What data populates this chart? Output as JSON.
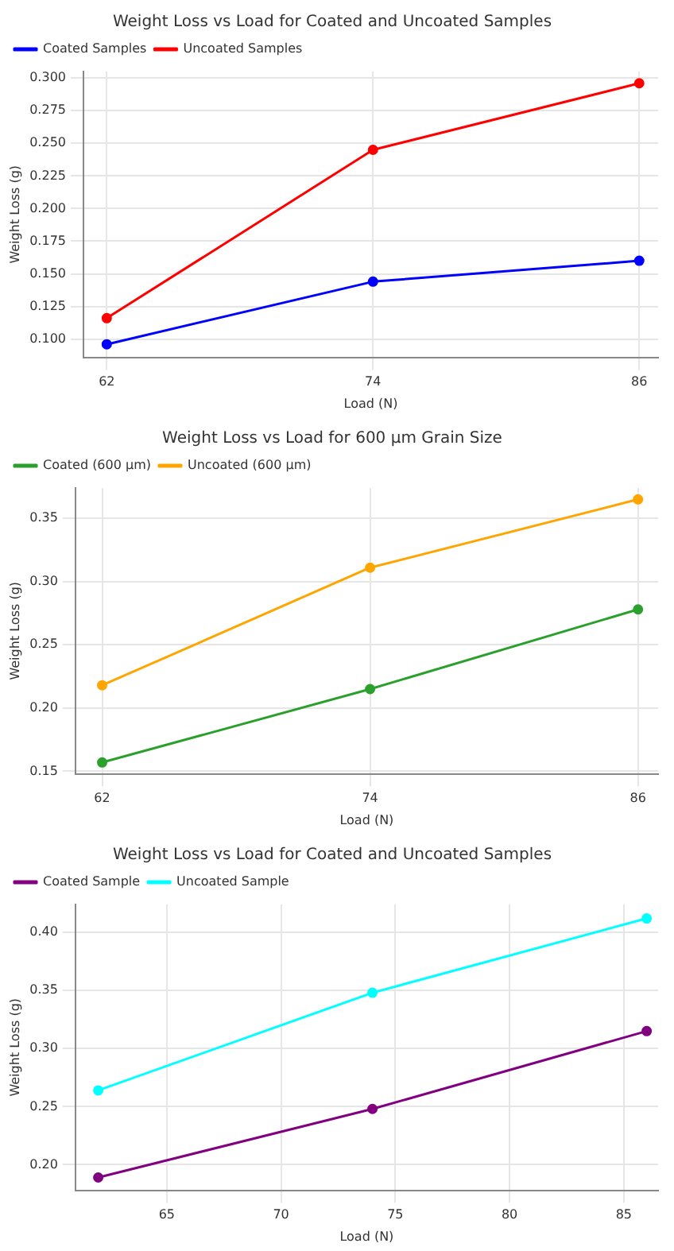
{
  "chart_data": [
    {
      "type": "line",
      "title": "Weight Loss vs Load for Coated and Uncoated Samples",
      "xlabel": "Load (N)",
      "ylabel": "Weight Loss (g)",
      "x": [
        62,
        74,
        86
      ],
      "xlim": [
        60.95,
        86.85
      ],
      "xticks": [
        62,
        74,
        86
      ],
      "ylim": [
        0.086,
        0.305
      ],
      "yticks": [
        {
          "value": 0.1,
          "label": "0.100"
        },
        {
          "value": 0.125,
          "label": "0.125"
        },
        {
          "value": 0.15,
          "label": "0.150"
        },
        {
          "value": 0.175,
          "label": "0.175"
        },
        {
          "value": 0.2,
          "label": "0.200"
        },
        {
          "value": 0.225,
          "label": "0.225"
        },
        {
          "value": 0.25,
          "label": "0.250"
        },
        {
          "value": 0.275,
          "label": "0.275"
        },
        {
          "value": 0.3,
          "label": "0.300"
        }
      ],
      "grid": true,
      "legend": "top left",
      "marker": "circle",
      "line_style": "solid",
      "series": [
        {
          "name": "Coated Samples",
          "color": "#0000ff",
          "values": [
            0.096,
            0.144,
            0.16
          ]
        },
        {
          "name": "Uncoated Samples",
          "color": "#ff0000",
          "values": [
            0.116,
            0.245,
            0.296
          ]
        }
      ]
    },
    {
      "type": "line",
      "title": "Weight Loss vs Load for 600 µm Grain Size",
      "xlabel": "Load (N)",
      "ylabel": "Weight Loss (g)",
      "x": [
        62,
        74,
        86
      ],
      "xlim": [
        60.8,
        86.9
      ],
      "xticks": [
        62,
        74,
        86
      ],
      "ylim": [
        0.148,
        0.374
      ],
      "yticks": [
        {
          "value": 0.15,
          "label": "0.15"
        },
        {
          "value": 0.2,
          "label": "0.20"
        },
        {
          "value": 0.25,
          "label": "0.25"
        },
        {
          "value": 0.3,
          "label": "0.30"
        },
        {
          "value": 0.35,
          "label": "0.35"
        }
      ],
      "grid": true,
      "legend": "top left",
      "marker": "circle",
      "line_style": "solid",
      "series": [
        {
          "name": "Coated (600 µm)",
          "color": "#2ca02c",
          "values": [
            0.157,
            0.215,
            0.278
          ]
        },
        {
          "name": "Uncoated (600 µm)",
          "color": "#ffa500",
          "values": [
            0.218,
            0.311,
            0.365
          ]
        }
      ]
    },
    {
      "type": "line",
      "title": "Weight Loss vs Load for Coated and Uncoated Samples",
      "xlabel": "Load (N)",
      "ylabel": "Weight Loss (g)",
      "x": [
        62,
        74,
        86
      ],
      "xlim": [
        61,
        86.5
      ],
      "xticks": [
        65,
        70,
        75,
        80,
        85
      ],
      "ylim": [
        0.178,
        0.424
      ],
      "yticks": [
        {
          "value": 0.2,
          "label": "0.20"
        },
        {
          "value": 0.25,
          "label": "0.25"
        },
        {
          "value": 0.3,
          "label": "0.30"
        },
        {
          "value": 0.35,
          "label": "0.35"
        },
        {
          "value": 0.4,
          "label": "0.40"
        }
      ],
      "grid": true,
      "legend": "top left",
      "marker": "circle",
      "line_style": "solid",
      "series": [
        {
          "name": "Coated Sample",
          "color": "#800080",
          "values": [
            0.189,
            0.248,
            0.315
          ]
        },
        {
          "name": "Uncoated Sample",
          "color": "#00ffff",
          "values": [
            0.264,
            0.348,
            0.412
          ]
        }
      ]
    }
  ]
}
